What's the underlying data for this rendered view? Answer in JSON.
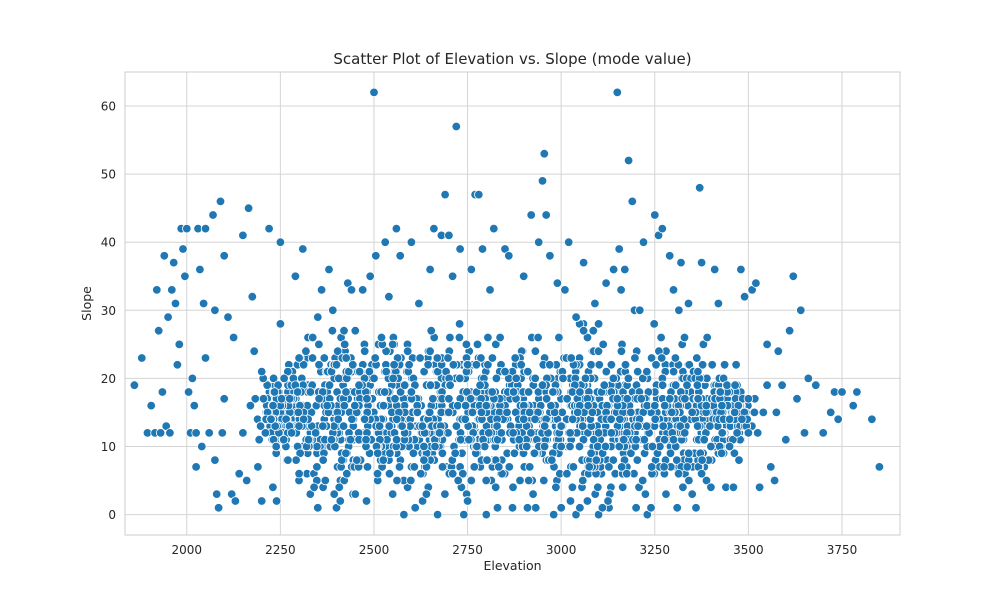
{
  "chart_data": {
    "type": "scatter",
    "title": "Scatter Plot of Elevation vs. Slope (mode value)",
    "xlabel": "Elevation",
    "ylabel": "Slope",
    "xlim": [
      1835,
      3905
    ],
    "ylim": [
      -3,
      65
    ],
    "xticks": [
      2000,
      2250,
      2500,
      2750,
      3000,
      3250,
      3500,
      3750
    ],
    "yticks": [
      0,
      10,
      20,
      30,
      40,
      50,
      60
    ],
    "grid": true,
    "color": "#1f77b4",
    "note": "Dense cloud of several thousand points; representative sample plus all visible outliers.",
    "points": [
      [
        1860,
        19
      ],
      [
        1880,
        23
      ],
      [
        1895,
        12
      ],
      [
        1905,
        16
      ],
      [
        1915,
        12
      ],
      [
        1920,
        33
      ],
      [
        1925,
        27
      ],
      [
        1930,
        12
      ],
      [
        1935,
        18
      ],
      [
        1940,
        38
      ],
      [
        1945,
        13
      ],
      [
        1950,
        29
      ],
      [
        1955,
        12
      ],
      [
        1960,
        33
      ],
      [
        1965,
        37
      ],
      [
        1970,
        31
      ],
      [
        1975,
        22
      ],
      [
        1980,
        25
      ],
      [
        1985,
        42
      ],
      [
        1990,
        39
      ],
      [
        1995,
        35
      ],
      [
        2000,
        42
      ],
      [
        2005,
        18
      ],
      [
        2010,
        12
      ],
      [
        2015,
        20
      ],
      [
        2020,
        16
      ],
      [
        2025,
        7
      ],
      [
        2030,
        42
      ],
      [
        2035,
        36
      ],
      [
        2040,
        10
      ],
      [
        2045,
        31
      ],
      [
        2050,
        42
      ],
      [
        2060,
        12
      ],
      [
        2070,
        44
      ],
      [
        2075,
        8
      ],
      [
        2080,
        3
      ],
      [
        2085,
        1
      ],
      [
        2090,
        46
      ],
      [
        2095,
        12
      ],
      [
        2100,
        38
      ],
      [
        2110,
        29
      ],
      [
        2120,
        3
      ],
      [
        2130,
        2
      ],
      [
        2140,
        6
      ],
      [
        2150,
        41
      ],
      [
        2160,
        5
      ],
      [
        2165,
        45
      ],
      [
        2170,
        16
      ],
      [
        2180,
        24
      ],
      [
        2190,
        7
      ],
      [
        2200,
        2
      ],
      [
        2210,
        12
      ],
      [
        2220,
        42
      ],
      [
        2230,
        4
      ],
      [
        2240,
        2
      ],
      [
        2250,
        40
      ],
      [
        2260,
        20
      ],
      [
        2270,
        8
      ],
      [
        2280,
        12
      ],
      [
        2290,
        35
      ],
      [
        2300,
        6
      ],
      [
        2310,
        39
      ],
      [
        2320,
        10
      ],
      [
        2330,
        3
      ],
      [
        2340,
        4
      ],
      [
        2350,
        1
      ],
      [
        2360,
        33
      ],
      [
        2370,
        5
      ],
      [
        2380,
        36
      ],
      [
        2390,
        30
      ],
      [
        2400,
        1
      ],
      [
        2410,
        2
      ],
      [
        2420,
        27
      ],
      [
        2430,
        34
      ],
      [
        2440,
        33
      ],
      [
        2450,
        3
      ],
      [
        2460,
        19
      ],
      [
        2470,
        33
      ],
      [
        2480,
        2
      ],
      [
        2490,
        35
      ],
      [
        2500,
        62
      ],
      [
        2505,
        38
      ],
      [
        2510,
        9
      ],
      [
        2520,
        26
      ],
      [
        2530,
        40
      ],
      [
        2540,
        32
      ],
      [
        2550,
        3
      ],
      [
        2560,
        42
      ],
      [
        2570,
        38
      ],
      [
        2580,
        0
      ],
      [
        2590,
        24
      ],
      [
        2600,
        40
      ],
      [
        2610,
        1
      ],
      [
        2620,
        31
      ],
      [
        2630,
        2
      ],
      [
        2640,
        3
      ],
      [
        2650,
        36
      ],
      [
        2660,
        42
      ],
      [
        2670,
        0
      ],
      [
        2680,
        41
      ],
      [
        2690,
        47
      ],
      [
        2700,
        41
      ],
      [
        2710,
        35
      ],
      [
        2720,
        57
      ],
      [
        2730,
        39
      ],
      [
        2740,
        0
      ],
      [
        2750,
        2
      ],
      [
        2760,
        36
      ],
      [
        2770,
        47
      ],
      [
        2780,
        47
      ],
      [
        2790,
        39
      ],
      [
        2800,
        0
      ],
      [
        2810,
        33
      ],
      [
        2820,
        42
      ],
      [
        2830,
        1
      ],
      [
        2840,
        12
      ],
      [
        2850,
        39
      ],
      [
        2860,
        38
      ],
      [
        2870,
        1
      ],
      [
        2880,
        20
      ],
      [
        2890,
        5
      ],
      [
        2900,
        35
      ],
      [
        2910,
        1
      ],
      [
        2920,
        44
      ],
      [
        2930,
        14
      ],
      [
        2940,
        40
      ],
      [
        2950,
        49
      ],
      [
        2955,
        53
      ],
      [
        2960,
        44
      ],
      [
        2970,
        38
      ],
      [
        2980,
        0
      ],
      [
        2990,
        34
      ],
      [
        3000,
        1
      ],
      [
        3010,
        33
      ],
      [
        3020,
        40
      ],
      [
        3030,
        4
      ],
      [
        3040,
        29
      ],
      [
        3050,
        1
      ],
      [
        3060,
        37
      ],
      [
        3070,
        2
      ],
      [
        3080,
        9
      ],
      [
        3090,
        31
      ],
      [
        3100,
        0
      ],
      [
        3110,
        1
      ],
      [
        3120,
        34
      ],
      [
        3130,
        3
      ],
      [
        3140,
        36
      ],
      [
        3150,
        62
      ],
      [
        3155,
        39
      ],
      [
        3160,
        33
      ],
      [
        3170,
        36
      ],
      [
        3180,
        52
      ],
      [
        3190,
        46
      ],
      [
        3200,
        1
      ],
      [
        3210,
        30
      ],
      [
        3220,
        40
      ],
      [
        3230,
        0
      ],
      [
        3240,
        1
      ],
      [
        3250,
        44
      ],
      [
        3260,
        41
      ],
      [
        3270,
        42
      ],
      [
        3280,
        3
      ],
      [
        3290,
        38
      ],
      [
        3300,
        33
      ],
      [
        3310,
        1
      ],
      [
        3320,
        37
      ],
      [
        3330,
        12
      ],
      [
        3340,
        31
      ],
      [
        3350,
        3
      ],
      [
        3360,
        1
      ],
      [
        3370,
        48
      ],
      [
        3375,
        37
      ],
      [
        3380,
        25
      ],
      [
        3390,
        26
      ],
      [
        3400,
        4
      ],
      [
        3410,
        36
      ],
      [
        3420,
        31
      ],
      [
        3430,
        12
      ],
      [
        3440,
        4
      ],
      [
        3450,
        10
      ],
      [
        3460,
        4
      ],
      [
        3470,
        12
      ],
      [
        3480,
        36
      ],
      [
        3490,
        32
      ],
      [
        3500,
        12
      ],
      [
        3510,
        33
      ],
      [
        3520,
        34
      ],
      [
        3530,
        4
      ],
      [
        3540,
        15
      ],
      [
        3550,
        25
      ],
      [
        3560,
        7
      ],
      [
        3570,
        5
      ],
      [
        3580,
        24
      ],
      [
        3590,
        19
      ],
      [
        3600,
        11
      ],
      [
        3610,
        27
      ],
      [
        3620,
        35
      ],
      [
        3630,
        17
      ],
      [
        3640,
        30
      ],
      [
        3650,
        12
      ],
      [
        3660,
        20
      ],
      [
        3680,
        19
      ],
      [
        3700,
        12
      ],
      [
        3720,
        15
      ],
      [
        3730,
        18
      ],
      [
        3740,
        14
      ],
      [
        3750,
        18
      ],
      [
        3780,
        16
      ],
      [
        3790,
        18
      ],
      [
        3830,
        14
      ],
      [
        3850,
        7
      ],
      [
        2025,
        12
      ],
      [
        2050,
        23
      ],
      [
        2075,
        30
      ],
      [
        2100,
        17
      ],
      [
        2125,
        26
      ],
      [
        2150,
        12
      ],
      [
        2175,
        32
      ],
      [
        2200,
        21
      ],
      [
        2225,
        14
      ],
      [
        2250,
        28
      ],
      [
        2275,
        17
      ],
      [
        2300,
        23
      ],
      [
        2325,
        11
      ],
      [
        2350,
        29
      ],
      [
        2375,
        16
      ],
      [
        2400,
        22
      ],
      [
        2425,
        9
      ],
      [
        2450,
        27
      ],
      [
        2475,
        14
      ],
      [
        2500,
        20
      ],
      [
        2525,
        8
      ],
      [
        2550,
        25
      ],
      [
        2575,
        13
      ],
      [
        2600,
        18
      ],
      [
        2625,
        6
      ],
      [
        2650,
        24
      ],
      [
        2675,
        12
      ],
      [
        2700,
        17
      ],
      [
        2725,
        5
      ],
      [
        2750,
        22
      ],
      [
        2775,
        10
      ],
      [
        2800,
        16
      ],
      [
        2825,
        4
      ],
      [
        2850,
        21
      ],
      [
        2875,
        9
      ],
      [
        2900,
        14
      ],
      [
        2925,
        3
      ],
      [
        2950,
        19
      ],
      [
        2975,
        8
      ],
      [
        3000,
        13
      ],
      [
        3025,
        2
      ],
      [
        3050,
        18
      ],
      [
        3075,
        7
      ],
      [
        3100,
        12
      ],
      [
        3125,
        2
      ],
      [
        3150,
        17
      ],
      [
        3175,
        6
      ],
      [
        3200,
        11
      ],
      [
        3225,
        3
      ],
      [
        3250,
        16
      ],
      [
        3275,
        7
      ],
      [
        3300,
        11
      ],
      [
        3325,
        4
      ],
      [
        3350,
        15
      ],
      [
        3375,
        6
      ],
      [
        3400,
        10
      ],
      [
        3425,
        18
      ],
      [
        3450,
        14
      ],
      [
        3475,
        8
      ],
      [
        3500,
        17
      ],
      [
        3525,
        12
      ],
      [
        3550,
        19
      ],
      [
        3575,
        15
      ]
    ]
  }
}
